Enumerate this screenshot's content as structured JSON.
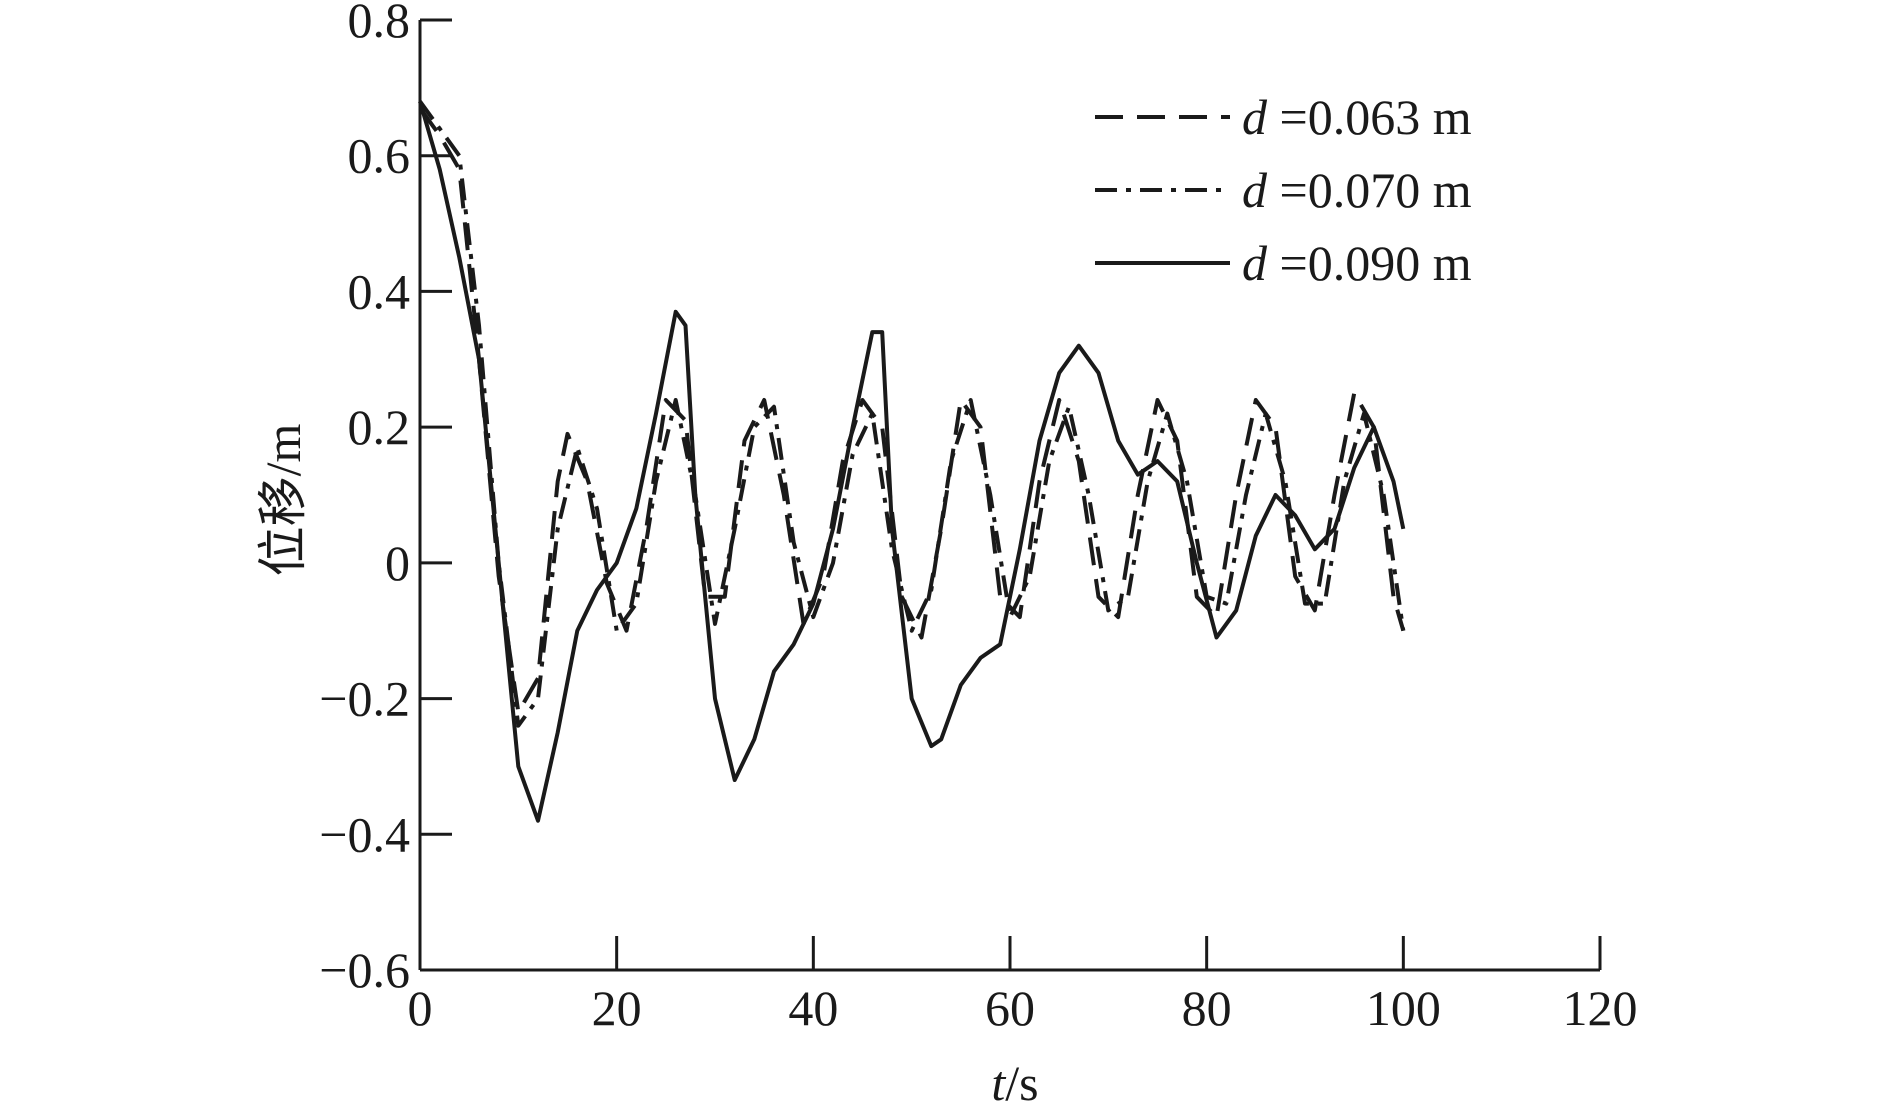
{
  "chart_data": {
    "type": "line",
    "title": "",
    "xlabel": {
      "var": "t",
      "unit": "/s"
    },
    "ylabel": "位移/m",
    "xlim": [
      0,
      120
    ],
    "ylim": [
      -0.6,
      0.8
    ],
    "xticks": [
      "0",
      "20",
      "40",
      "60",
      "80",
      "100",
      "120"
    ],
    "yticks": [
      "0.8",
      "0.6",
      "0.4",
      "0.2",
      "0",
      "−0.2",
      "−0.4",
      "−0.6"
    ],
    "grid": false,
    "legend_position": "top-right",
    "color": "#1a1a1a",
    "series": [
      {
        "name": "=0.063 m",
        "var": "d",
        "style": "dashed",
        "x": [
          0,
          2,
          4,
          6,
          8,
          10,
          12,
          14,
          15,
          17,
          19,
          21,
          23,
          25,
          27,
          29,
          31,
          33,
          35,
          37,
          39,
          41,
          43,
          45,
          47,
          49,
          51,
          53,
          55,
          57,
          59,
          61,
          63,
          65,
          67,
          69,
          71,
          73,
          75,
          77,
          79,
          81,
          83,
          85,
          87,
          89,
          91,
          93,
          95,
          97,
          99,
          100
        ],
        "y": [
          0.67,
          0.63,
          0.58,
          0.3,
          -0.02,
          -0.22,
          -0.17,
          0.12,
          0.19,
          0.12,
          -0.03,
          -0.1,
          0.05,
          0.24,
          0.21,
          -0.05,
          -0.05,
          0.18,
          0.24,
          0.1,
          -0.09,
          -0.02,
          0.15,
          0.24,
          0.2,
          -0.05,
          -0.11,
          0.05,
          0.24,
          0.2,
          -0.05,
          -0.08,
          0.12,
          0.24,
          0.15,
          -0.05,
          -0.08,
          0.1,
          0.24,
          0.18,
          -0.05,
          -0.08,
          0.1,
          0.24,
          0.2,
          -0.02,
          -0.07,
          0.1,
          0.25,
          0.2,
          -0.05,
          -0.1
        ]
      },
      {
        "name": "=0.070 m",
        "var": "d",
        "style": "dashdot",
        "x": [
          0,
          2,
          4,
          6,
          8,
          10,
          12,
          14,
          16,
          18,
          20,
          22,
          24,
          26,
          28,
          30,
          32,
          34,
          36,
          38,
          40,
          42,
          44,
          46,
          48,
          50,
          52,
          54,
          56,
          58,
          60,
          62,
          64,
          66,
          68,
          70,
          72,
          74,
          76,
          78,
          80,
          82,
          84,
          86,
          88,
          90,
          92,
          94,
          96,
          98,
          100
        ],
        "y": [
          0.68,
          0.64,
          0.6,
          0.35,
          0.0,
          -0.24,
          -0.2,
          0.05,
          0.17,
          0.08,
          -0.1,
          -0.06,
          0.12,
          0.24,
          0.1,
          -0.09,
          0.05,
          0.2,
          0.23,
          0.03,
          -0.08,
          0.0,
          0.16,
          0.22,
          0.02,
          -0.1,
          -0.04,
          0.15,
          0.24,
          0.1,
          -0.08,
          -0.02,
          0.15,
          0.23,
          0.1,
          -0.07,
          -0.05,
          0.12,
          0.22,
          0.12,
          -0.05,
          -0.06,
          0.1,
          0.22,
          0.12,
          -0.06,
          -0.06,
          0.12,
          0.22,
          0.1,
          -0.1
        ]
      },
      {
        "name": "=0.090 m",
        "var": "d",
        "style": "solid",
        "x": [
          0,
          2,
          4,
          6,
          8,
          10,
          12,
          14,
          16,
          18,
          20,
          22,
          24,
          26,
          27,
          28,
          30,
          32,
          34,
          36,
          38,
          40,
          42,
          44,
          46,
          47,
          48,
          50,
          52,
          53,
          55,
          57,
          59,
          61,
          63,
          65,
          67,
          69,
          71,
          73,
          75,
          77,
          79,
          81,
          83,
          85,
          87,
          89,
          91,
          93,
          95,
          97,
          99,
          100
        ],
        "y": [
          0.68,
          0.58,
          0.45,
          0.3,
          0.0,
          -0.3,
          -0.38,
          -0.25,
          -0.1,
          -0.04,
          0.0,
          0.08,
          0.22,
          0.37,
          0.35,
          0.1,
          -0.2,
          -0.32,
          -0.26,
          -0.16,
          -0.12,
          -0.06,
          0.05,
          0.2,
          0.34,
          0.34,
          0.05,
          -0.2,
          -0.27,
          -0.26,
          -0.18,
          -0.14,
          -0.12,
          0.02,
          0.18,
          0.28,
          0.32,
          0.28,
          0.18,
          0.13,
          0.15,
          0.12,
          0.0,
          -0.11,
          -0.07,
          0.04,
          0.1,
          0.07,
          0.02,
          0.05,
          0.14,
          0.2,
          0.12,
          0.05
        ]
      }
    ]
  }
}
